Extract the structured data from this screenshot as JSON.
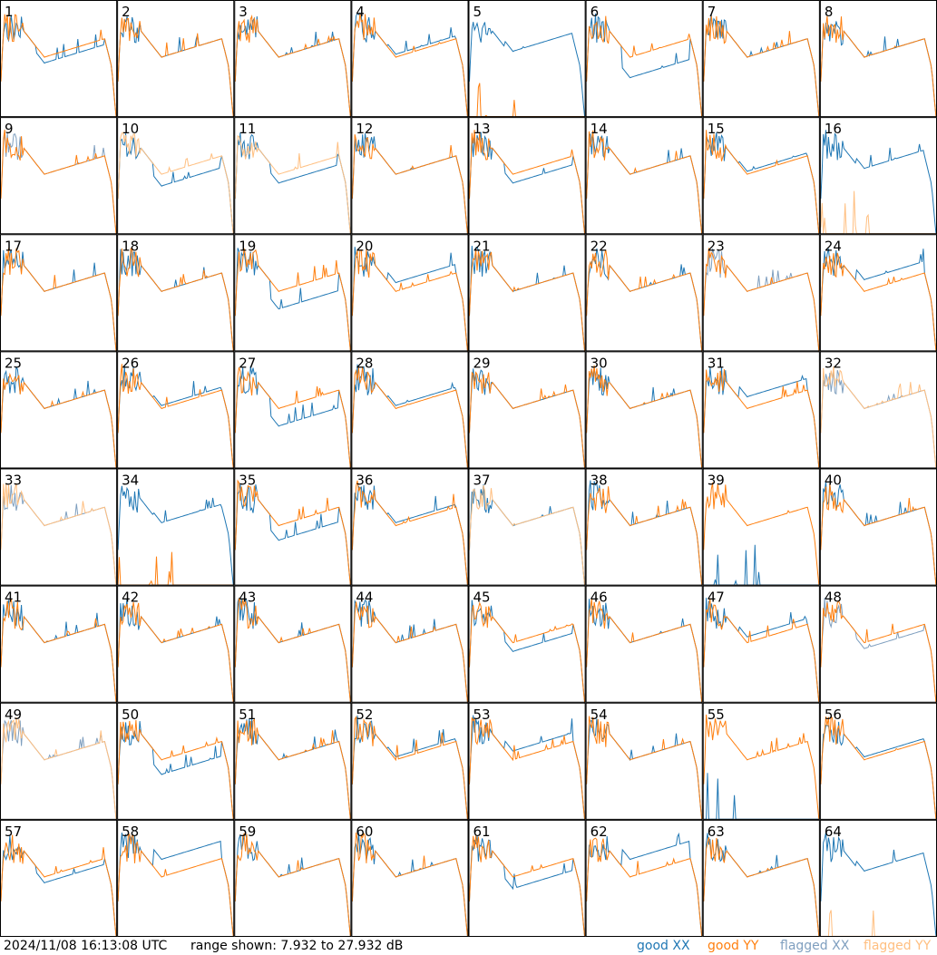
{
  "footer": {
    "timestamp": "2024/11/08 16:13:08 UTC",
    "range_text": "range shown: 7.932 to 27.932 dB",
    "legend": [
      {
        "label": "good XX",
        "color": "#1f77b4"
      },
      {
        "label": "good YY",
        "color": "#ff7f0e"
      },
      {
        "label": "flagged XX",
        "color": "#7f9fbf"
      },
      {
        "label": "flagged YY",
        "color": "#ffbf80"
      }
    ]
  },
  "chart_data": {
    "type": "line",
    "grid": {
      "rows": 8,
      "cols": 8
    },
    "ylim": [
      7.932,
      27.932
    ],
    "panels": [
      {
        "label": "1",
        "xx": "good",
        "yy": "good",
        "dx": -1.0
      },
      {
        "label": "2",
        "xx": "good",
        "yy": "good",
        "dx": 0.0
      },
      {
        "label": "3",
        "xx": "good",
        "yy": "good",
        "dx": 0.0
      },
      {
        "label": "4",
        "xx": "good",
        "yy": "good",
        "dx": 0.5
      },
      {
        "label": "5",
        "xx": "good",
        "yy": "good",
        "dx": 1.0,
        "yy_low": true
      },
      {
        "label": "6",
        "xx": "good",
        "yy": "good",
        "dx": -3.5
      },
      {
        "label": "7",
        "xx": "good",
        "yy": "good",
        "dx": 0.0
      },
      {
        "label": "8",
        "xx": "good",
        "yy": "good",
        "dx": 0.0
      },
      {
        "label": "9",
        "xx": "flagged",
        "yy": "good",
        "dx": 0.0
      },
      {
        "label": "10",
        "xx": "good",
        "yy": "flagged",
        "dx": -2.0
      },
      {
        "label": "11",
        "xx": "good",
        "yy": "flagged",
        "dx": -1.5
      },
      {
        "label": "12",
        "xx": "good",
        "yy": "good",
        "dx": 0.0
      },
      {
        "label": "13",
        "xx": "good",
        "yy": "good",
        "dx": -1.5
      },
      {
        "label": "14",
        "xx": "good",
        "yy": "good",
        "dx": 0.0
      },
      {
        "label": "15",
        "xx": "good",
        "yy": "good",
        "dx": 0.5
      },
      {
        "label": "16",
        "xx": "good",
        "yy": "flagged",
        "dx": 1.0,
        "yy_low": true
      },
      {
        "label": "17",
        "xx": "good",
        "yy": "good",
        "dx": 0.0
      },
      {
        "label": "18",
        "xx": "good",
        "yy": "good",
        "dx": 0.0
      },
      {
        "label": "19",
        "xx": "good",
        "yy": "good",
        "dx": -3.0
      },
      {
        "label": "20",
        "xx": "good",
        "yy": "good",
        "dx": 1.5
      },
      {
        "label": "21",
        "xx": "good",
        "yy": "good",
        "dx": 0.0
      },
      {
        "label": "22",
        "xx": "good",
        "yy": "good",
        "dx": 0.0
      },
      {
        "label": "23",
        "xx": "flagged",
        "yy": "good",
        "dx": 0.0
      },
      {
        "label": "24",
        "xx": "good",
        "yy": "good",
        "dx": 2.0
      },
      {
        "label": "25",
        "xx": "good",
        "yy": "good",
        "dx": 0.0
      },
      {
        "label": "26",
        "xx": "good",
        "yy": "good",
        "dx": 0.5
      },
      {
        "label": "27",
        "xx": "good",
        "yy": "good",
        "dx": -3.0
      },
      {
        "label": "28",
        "xx": "good",
        "yy": "good",
        "dx": 0.5
      },
      {
        "label": "29",
        "xx": "good",
        "yy": "good",
        "dx": 0.0
      },
      {
        "label": "30",
        "xx": "good",
        "yy": "good",
        "dx": 0.0
      },
      {
        "label": "31",
        "xx": "good",
        "yy": "good",
        "dx": 2.0
      },
      {
        "label": "32",
        "xx": "flagged",
        "yy": "flagged",
        "dx": 0.0
      },
      {
        "label": "33",
        "xx": "flagged",
        "yy": "flagged",
        "dx": 0.0
      },
      {
        "label": "34",
        "xx": "good",
        "yy": "good",
        "dx": 0.5,
        "yy_low": true
      },
      {
        "label": "35",
        "xx": "good",
        "yy": "good",
        "dx": -2.5
      },
      {
        "label": "36",
        "xx": "good",
        "yy": "good",
        "dx": 0.5
      },
      {
        "label": "37",
        "xx": "good",
        "yy": "flagged",
        "dx": 0.0
      },
      {
        "label": "38",
        "xx": "good",
        "yy": "good",
        "dx": 0.0
      },
      {
        "label": "39",
        "xx": "good",
        "yy": "good",
        "dx": 0.0,
        "xx_low": true
      },
      {
        "label": "40",
        "xx": "good",
        "yy": "good",
        "dx": 0.0
      },
      {
        "label": "41",
        "xx": "good",
        "yy": "good",
        "dx": 0.0
      },
      {
        "label": "42",
        "xx": "good",
        "yy": "good",
        "dx": 0.0
      },
      {
        "label": "43",
        "xx": "good",
        "yy": "good",
        "dx": 0.0
      },
      {
        "label": "44",
        "xx": "good",
        "yy": "good",
        "dx": 0.0
      },
      {
        "label": "45",
        "xx": "good",
        "yy": "good",
        "dx": -1.5
      },
      {
        "label": "46",
        "xx": "good",
        "yy": "good",
        "dx": 0.0
      },
      {
        "label": "47",
        "xx": "good",
        "yy": "good",
        "dx": 1.0
      },
      {
        "label": "48",
        "xx": "flagged",
        "yy": "good",
        "dx": -1.0
      },
      {
        "label": "49",
        "xx": "flagged",
        "yy": "flagged",
        "dx": 0.0
      },
      {
        "label": "50",
        "xx": "good",
        "yy": "good",
        "dx": -2.5
      },
      {
        "label": "51",
        "xx": "good",
        "yy": "good",
        "dx": 0.0
      },
      {
        "label": "52",
        "xx": "good",
        "yy": "good",
        "dx": 0.5
      },
      {
        "label": "53",
        "xx": "good",
        "yy": "good",
        "dx": 1.5
      },
      {
        "label": "54",
        "xx": "good",
        "yy": "good",
        "dx": 0.0
      },
      {
        "label": "55",
        "xx": "good",
        "yy": "good",
        "dx": 0.0,
        "xx_low": true
      },
      {
        "label": "56",
        "xx": "good",
        "yy": "good",
        "dx": 0.5
      },
      {
        "label": "57",
        "xx": "good",
        "yy": "good",
        "dx": -1.0
      },
      {
        "label": "58",
        "xx": "good",
        "yy": "good",
        "dx": 3.0
      },
      {
        "label": "59",
        "xx": "good",
        "yy": "good",
        "dx": 0.0
      },
      {
        "label": "60",
        "xx": "good",
        "yy": "good",
        "dx": 0.0
      },
      {
        "label": "61",
        "xx": "good",
        "yy": "good",
        "dx": -2.0
      },
      {
        "label": "62",
        "xx": "good",
        "yy": "good",
        "dx": 3.0
      },
      {
        "label": "63",
        "xx": "good",
        "yy": "good",
        "dx": 0.0
      },
      {
        "label": "64",
        "xx": "good",
        "yy": "flagged",
        "dx": 1.0,
        "yy_low": true
      }
    ]
  }
}
